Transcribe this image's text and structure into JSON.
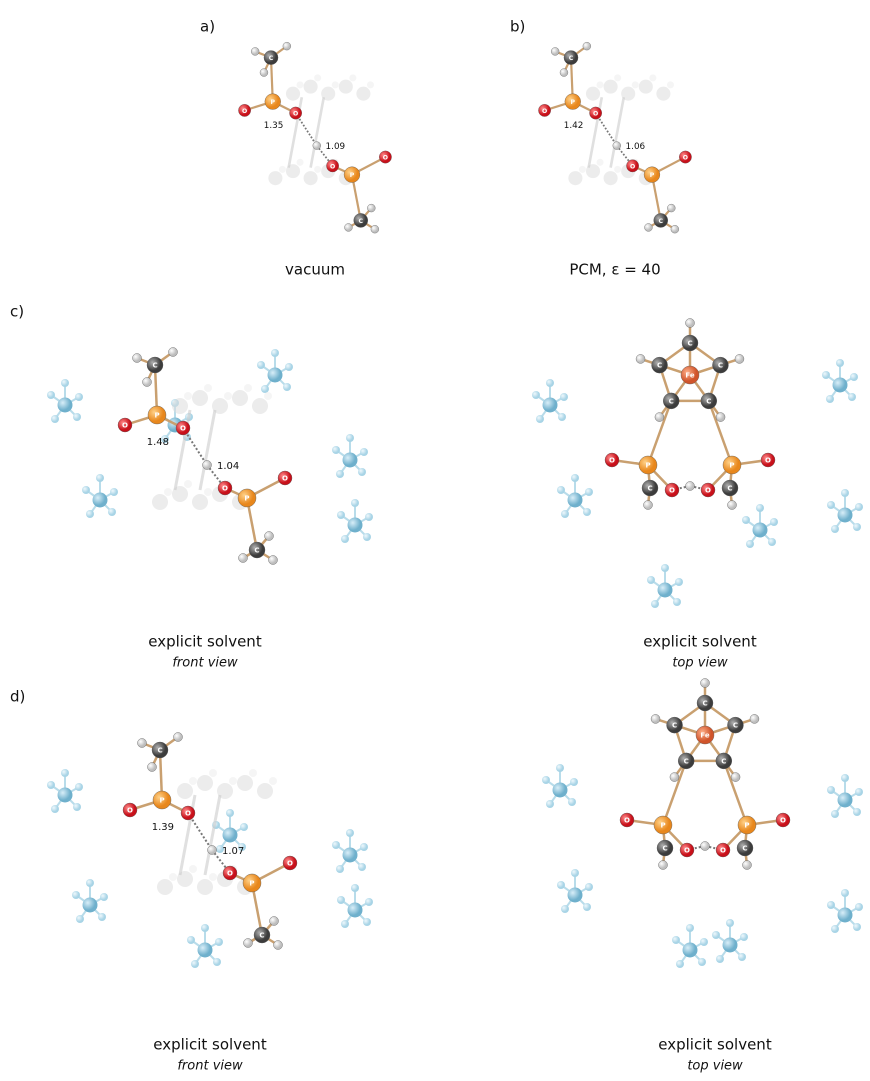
{
  "panels": [
    {
      "label": "a)",
      "views": [
        {
          "caption": "vacuum",
          "bond_lengths": [
            1.35,
            1.09
          ]
        }
      ]
    },
    {
      "label": "b)",
      "views": [
        {
          "caption": "PCM, ε = 40",
          "bond_lengths": [
            1.42,
            1.06
          ]
        }
      ]
    },
    {
      "label": "c)",
      "views": [
        {
          "caption": "explicit solvent",
          "subcaption": "front view",
          "bond_lengths": [
            1.48,
            1.04
          ]
        },
        {
          "caption": "explicit solvent",
          "subcaption": "top view"
        }
      ]
    },
    {
      "label": "d)",
      "views": [
        {
          "caption": "explicit solvent",
          "subcaption": "front view",
          "bond_lengths": [
            1.39,
            1.07
          ]
        },
        {
          "caption": "explicit solvent",
          "subcaption": "top view"
        }
      ]
    }
  ],
  "atom_symbols": {
    "P": "P",
    "O": "O",
    "C": "C",
    "Fe": "Fe"
  }
}
